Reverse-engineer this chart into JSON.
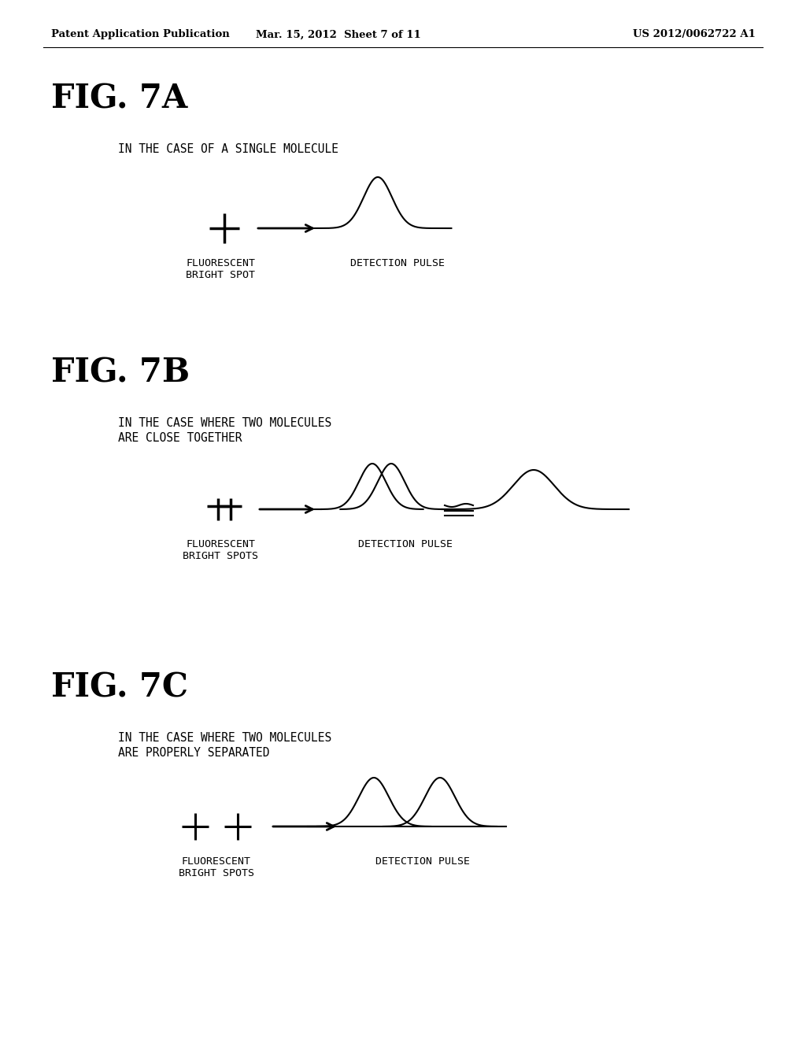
{
  "background_color": "#ffffff",
  "header_left": "Patent Application Publication",
  "header_mid": "Mar. 15, 2012  Sheet 7 of 11",
  "header_right": "US 2012/0062722 A1",
  "fig7a_title": "FIG. 7A",
  "fig7b_title": "FIG. 7B",
  "fig7c_title": "FIG. 7C",
  "fig7a_subtitle": "IN THE CASE OF A SINGLE MOLECULE",
  "fig7b_subtitle_1": "IN THE CASE WHERE TWO MOLECULES",
  "fig7b_subtitle_2": "ARE CLOSE TOGETHER",
  "fig7c_subtitle_1": "IN THE CASE WHERE TWO MOLECULES",
  "fig7c_subtitle_2": "ARE PROPERLY SEPARATED",
  "label_fluorescent_spot": "FLUORESCENT\nBRIGHT SPOT",
  "label_fluorescent_spots": "FLUORESCENT\nBRIGHT SPOTS",
  "label_detection_pulse": "DETECTION PULSE"
}
